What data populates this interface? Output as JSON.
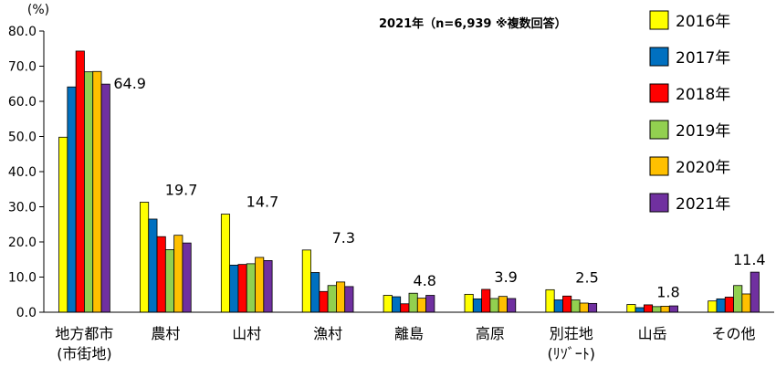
{
  "chart_data": {
    "type": "bar",
    "unit_label": "(%)",
    "note": "2021年（n=6,939 ※複数回答）",
    "ylim": [
      0,
      80
    ],
    "yticks": [
      "0.0",
      "10.0",
      "20.0",
      "30.0",
      "40.0",
      "50.0",
      "60.0",
      "70.0",
      "80.0"
    ],
    "categories": [
      [
        "地方都市",
        "(市街地)"
      ],
      [
        "農村"
      ],
      [
        "山村"
      ],
      [
        "漁村"
      ],
      [
        "離島"
      ],
      [
        "高原"
      ],
      [
        "別荘地",
        "(ﾘｿﾞｰﾄ)"
      ],
      [
        "山岳"
      ],
      [
        "その他"
      ]
    ],
    "series": [
      {
        "name": "2016年",
        "color": "#FFFF00",
        "values": [
          49.8,
          31.3,
          27.9,
          17.7,
          4.8,
          5.1,
          6.4,
          2.2,
          3.2
        ]
      },
      {
        "name": "2017年",
        "color": "#0070C0",
        "values": [
          64.1,
          26.5,
          13.4,
          11.3,
          4.4,
          3.8,
          3.5,
          1.3,
          3.8
        ]
      },
      {
        "name": "2018年",
        "color": "#FF0000",
        "values": [
          74.3,
          21.5,
          13.6,
          5.9,
          2.4,
          6.5,
          4.6,
          2.1,
          4.3
        ]
      },
      {
        "name": "2019年",
        "color": "#92D050",
        "values": [
          68.4,
          17.8,
          13.8,
          7.6,
          5.4,
          3.9,
          3.5,
          1.6,
          7.6
        ]
      },
      {
        "name": "2020年",
        "color": "#FFC000",
        "values": [
          68.5,
          21.9,
          15.6,
          8.6,
          4.0,
          4.5,
          2.6,
          1.7,
          5.2
        ]
      },
      {
        "name": "2021年",
        "color": "#7030A0",
        "values": [
          64.9,
          19.7,
          14.7,
          7.3,
          4.8,
          3.9,
          2.5,
          1.8,
          11.4
        ]
      }
    ],
    "data_labels": [
      "64.9",
      "19.7",
      "14.7",
      "7.3",
      "4.8",
      "3.9",
      "2.5",
      "1.8",
      "11.4"
    ],
    "legend_position": "right",
    "grid": false
  }
}
